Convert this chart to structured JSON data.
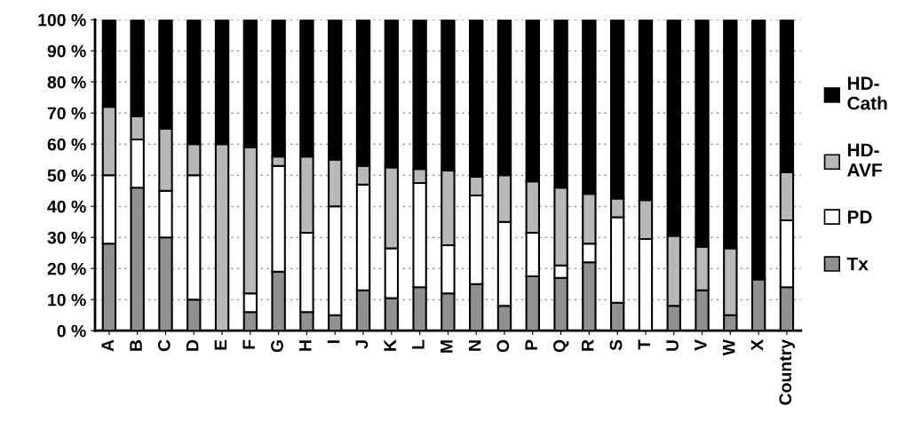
{
  "chart_data": {
    "type": "bar",
    "stacked": true,
    "categories": [
      "A",
      "B",
      "C",
      "D",
      "E",
      "F",
      "G",
      "H",
      "I",
      "J",
      "K",
      "L",
      "M",
      "N",
      "O",
      "P",
      "Q",
      "R",
      "S",
      "T",
      "U",
      "V",
      "W",
      "X",
      "Country"
    ],
    "series": [
      {
        "name": "Tx",
        "color": "#909090",
        "values": [
          28,
          46,
          30,
          10,
          0,
          6,
          19,
          6,
          5,
          13,
          10.5,
          14,
          12,
          15,
          8,
          17.5,
          17,
          22,
          9,
          0,
          8,
          13,
          5,
          16.5,
          14
        ]
      },
      {
        "name": "PD",
        "color": "#ffffff",
        "values": [
          22,
          15.5,
          15,
          40,
          0,
          6,
          34,
          25.5,
          35,
          34,
          16,
          33.5,
          15.5,
          28.5,
          27,
          14,
          4,
          6,
          27.5,
          29.5,
          0,
          0,
          0,
          0,
          21.5
        ]
      },
      {
        "name": "HD-\nAVF",
        "color": "#b8b8b8",
        "values": [
          22,
          7.5,
          20,
          10,
          60,
          47,
          3,
          24.5,
          15,
          6,
          26,
          4.5,
          24,
          6,
          15,
          16.5,
          25,
          16,
          6,
          12.5,
          22.5,
          14,
          21.5,
          0,
          15.5
        ]
      },
      {
        "name": "HD-\nCath",
        "color": "#000000",
        "values": [
          28,
          31,
          35,
          40,
          40,
          41,
          44,
          44,
          45,
          47,
          47.5,
          48,
          48.5,
          50.5,
          50,
          52,
          54,
          56,
          57.5,
          58,
          69.5,
          73,
          73.5,
          83.5,
          49
        ]
      }
    ],
    "ylim": [
      0,
      100
    ],
    "yticks": [
      {
        "value": 0,
        "label": "0 %"
      },
      {
        "value": 10,
        "label": "10 %"
      },
      {
        "value": 20,
        "label": "20 %"
      },
      {
        "value": 30,
        "label": "30 %"
      },
      {
        "value": 40,
        "label": "40 %"
      },
      {
        "value": 50,
        "label": "50 %"
      },
      {
        "value": 60,
        "label": "60 %"
      },
      {
        "value": 70,
        "label": "70 %"
      },
      {
        "value": 80,
        "label": "80 %"
      },
      {
        "value": 90,
        "label": "90 %"
      },
      {
        "value": 100,
        "label": "100 %"
      }
    ],
    "grid": "y",
    "legend": "right"
  }
}
